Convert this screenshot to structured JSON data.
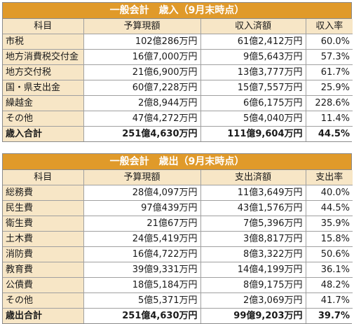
{
  "revenue": {
    "title": "一般会計　歳入（9月末時点）",
    "headers": [
      "科目",
      "予算現額",
      "収入済額",
      "収入率"
    ],
    "rows": [
      {
        "item": "市税",
        "budget": "102億286万円",
        "received": "61億2,412万円",
        "rate": "60.0%"
      },
      {
        "item": "地方消費税交付金",
        "budget": "16億7,000万円",
        "received": "9億5,643万円",
        "rate": "57.3%"
      },
      {
        "item": "地方交付税",
        "budget": "21億6,900万円",
        "received": "13億3,777万円",
        "rate": "61.7%"
      },
      {
        "item": "国・県支出金",
        "budget": "60億7,228万円",
        "received": "15億7,557万円",
        "rate": "25.9%"
      },
      {
        "item": "繰越金",
        "budget": "2億8,944万円",
        "received": "6億6,175万円",
        "rate": "228.6%"
      },
      {
        "item": "その他",
        "budget": "47億4,272万円",
        "received": "5億4,040万円",
        "rate": "11.4%"
      }
    ],
    "total": {
      "item": "歳入合計",
      "budget": "251億4,630万円",
      "received": "111億9,604万円",
      "rate": "44.5%"
    }
  },
  "expenditure": {
    "title": "一般会計　歳出（9月末時点）",
    "headers": [
      "科目",
      "予算現額",
      "支出済額",
      "支出率"
    ],
    "rows": [
      {
        "item": "総務費",
        "budget": "28億4,097万円",
        "spent": "11億3,649万円",
        "rate": "40.0%"
      },
      {
        "item": "民生費",
        "budget": "97億439万円",
        "spent": "43億1,576万円",
        "rate": "44.5%"
      },
      {
        "item": "衛生費",
        "budget": "21億67万円",
        "spent": "7億5,396万円",
        "rate": "35.9%"
      },
      {
        "item": "土木費",
        "budget": "24億5,419万円",
        "spent": "3億8,817万円",
        "rate": "15.8%"
      },
      {
        "item": "消防費",
        "budget": "16億4,722万円",
        "spent": "8億3,322万円",
        "rate": "50.6%"
      },
      {
        "item": "教育費",
        "budget": "39億9,331万円",
        "spent": "14億4,199万円",
        "rate": "36.1%"
      },
      {
        "item": "公債費",
        "budget": "18億5,184万円",
        "spent": "8億9,175万円",
        "rate": "48.2%"
      },
      {
        "item": "その他",
        "budget": "5億5,371万円",
        "spent": "2億3,069万円",
        "rate": "41.7%"
      }
    ],
    "total": {
      "item": "歳出合計",
      "budget": "251億4,630万円",
      "spent": "99億9,203万円",
      "rate": "39.7%"
    }
  }
}
